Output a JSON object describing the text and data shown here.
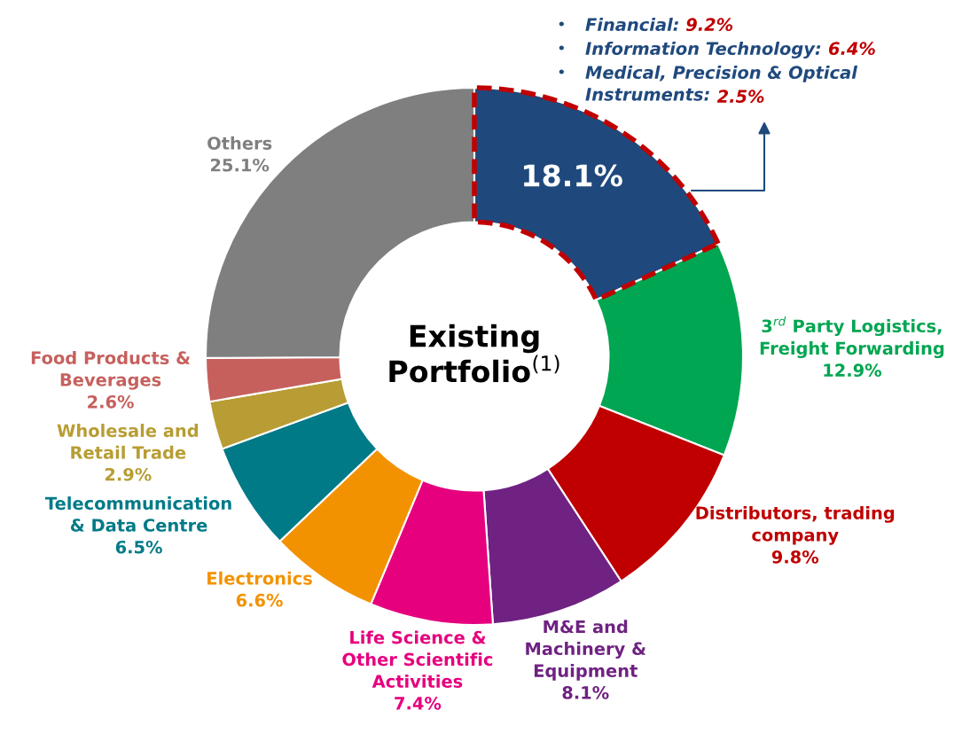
{
  "chart_data": {
    "type": "donut",
    "title": "Existing Portfolio$^{(1)}$",
    "categories": [
      null,
      "3$^{rd}$ Party Logistics,\nFreight Forwarding",
      "Distributors, trading\ncompany",
      "M&E and\nMachinery &\nEquipment",
      "Life Science &\nOther Scientific\nActivities",
      "Electronics",
      "Telecommunication\n& Data Centre",
      "Wholesale and\nRetail Trade",
      "Food Products &\nBeverages",
      "Others"
    ],
    "values": [
      18.1,
      12.9,
      9.8,
      8.1,
      7.4,
      6.6,
      6.5,
      2.9,
      2.6,
      25.1
    ],
    "value_labels": [
      "18.1%",
      "12.9%",
      "9.8%",
      "8.1%",
      "7.4%",
      "6.6%",
      "6.5%",
      "2.9%",
      "2.6%",
      "25.1%"
    ],
    "colors": [
      "#1f497d",
      "#00a651",
      "#c00000",
      "#6f2282",
      "#e6007e",
      "#f39200",
      "#007a87",
      "#b79d33",
      "#c6605d",
      "#7f7f7f"
    ],
    "annotations": [
      "•",
      "Financial: 9.2%",
      "•",
      "Information Technology: 6.4%",
      "•",
      "Medical, Precision & Optical\nInstruments: 2.5%"
    ],
    "legend": false
  }
}
